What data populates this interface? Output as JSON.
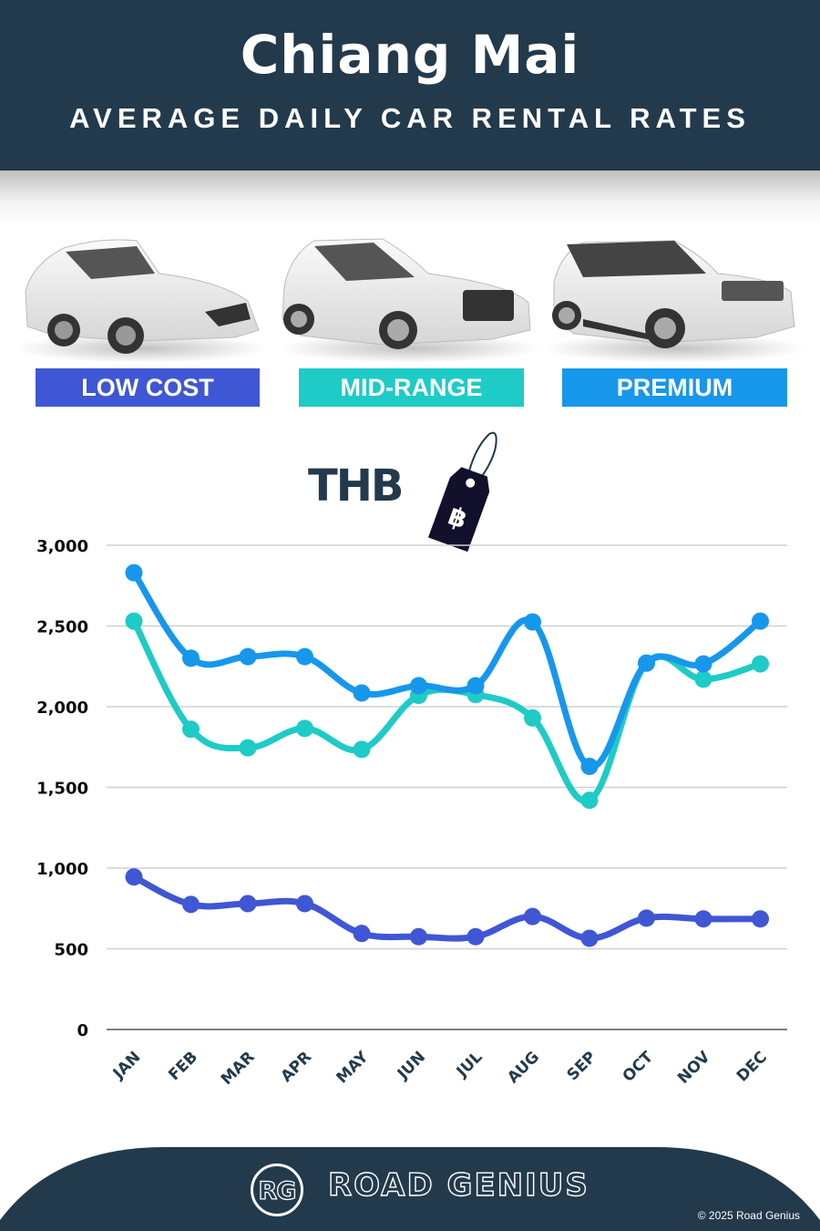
{
  "header": {
    "title": "Chiang Mai",
    "subtitle": "AVERAGE DAILY CAR RENTAL RATES"
  },
  "categories": [
    {
      "label": "LOW COST",
      "color": "#3f57d4"
    },
    {
      "label": "MID-RANGE",
      "color": "#1ecbc6"
    },
    {
      "label": "PREMIUM",
      "color": "#1797ec"
    }
  ],
  "currency": {
    "label": "THB",
    "icon": "price-tag-icon",
    "symbol": "฿"
  },
  "chart_data": {
    "type": "line",
    "title": "Chiang Mai Average Daily Car Rental Rates",
    "xlabel": "",
    "ylabel": "THB",
    "categories": [
      "JAN",
      "FEB",
      "MAR",
      "APR",
      "MAY",
      "JUN",
      "JUL",
      "AUG",
      "SEP",
      "OCT",
      "NOV",
      "DEC"
    ],
    "series": [
      {
        "name": "LOW COST",
        "color": "#3f57d4",
        "values": [
          945,
          775,
          780,
          780,
          595,
          575,
          575,
          700,
          565,
          690,
          685,
          685
        ]
      },
      {
        "name": "MID-RANGE",
        "color": "#1ecbc6",
        "values": [
          2530,
          1860,
          1745,
          1865,
          1735,
          2070,
          2075,
          1930,
          1420,
          2270,
          2170,
          2265
        ]
      },
      {
        "name": "PREMIUM",
        "color": "#1797ec",
        "values": [
          2830,
          2300,
          2310,
          2310,
          2085,
          2130,
          2130,
          2525,
          1630,
          2270,
          2265,
          2530
        ]
      }
    ],
    "yticks": [
      "0",
      "500",
      "1,000",
      "1,500",
      "2,000",
      "2,500",
      "3,000"
    ],
    "ylim": [
      0,
      3000
    ],
    "grid": true,
    "legend": "category badges above chart"
  },
  "footer": {
    "logo_mark": "RG",
    "brand": "ROAD GENIUS",
    "copyright": "© 2025 Road Genius"
  }
}
